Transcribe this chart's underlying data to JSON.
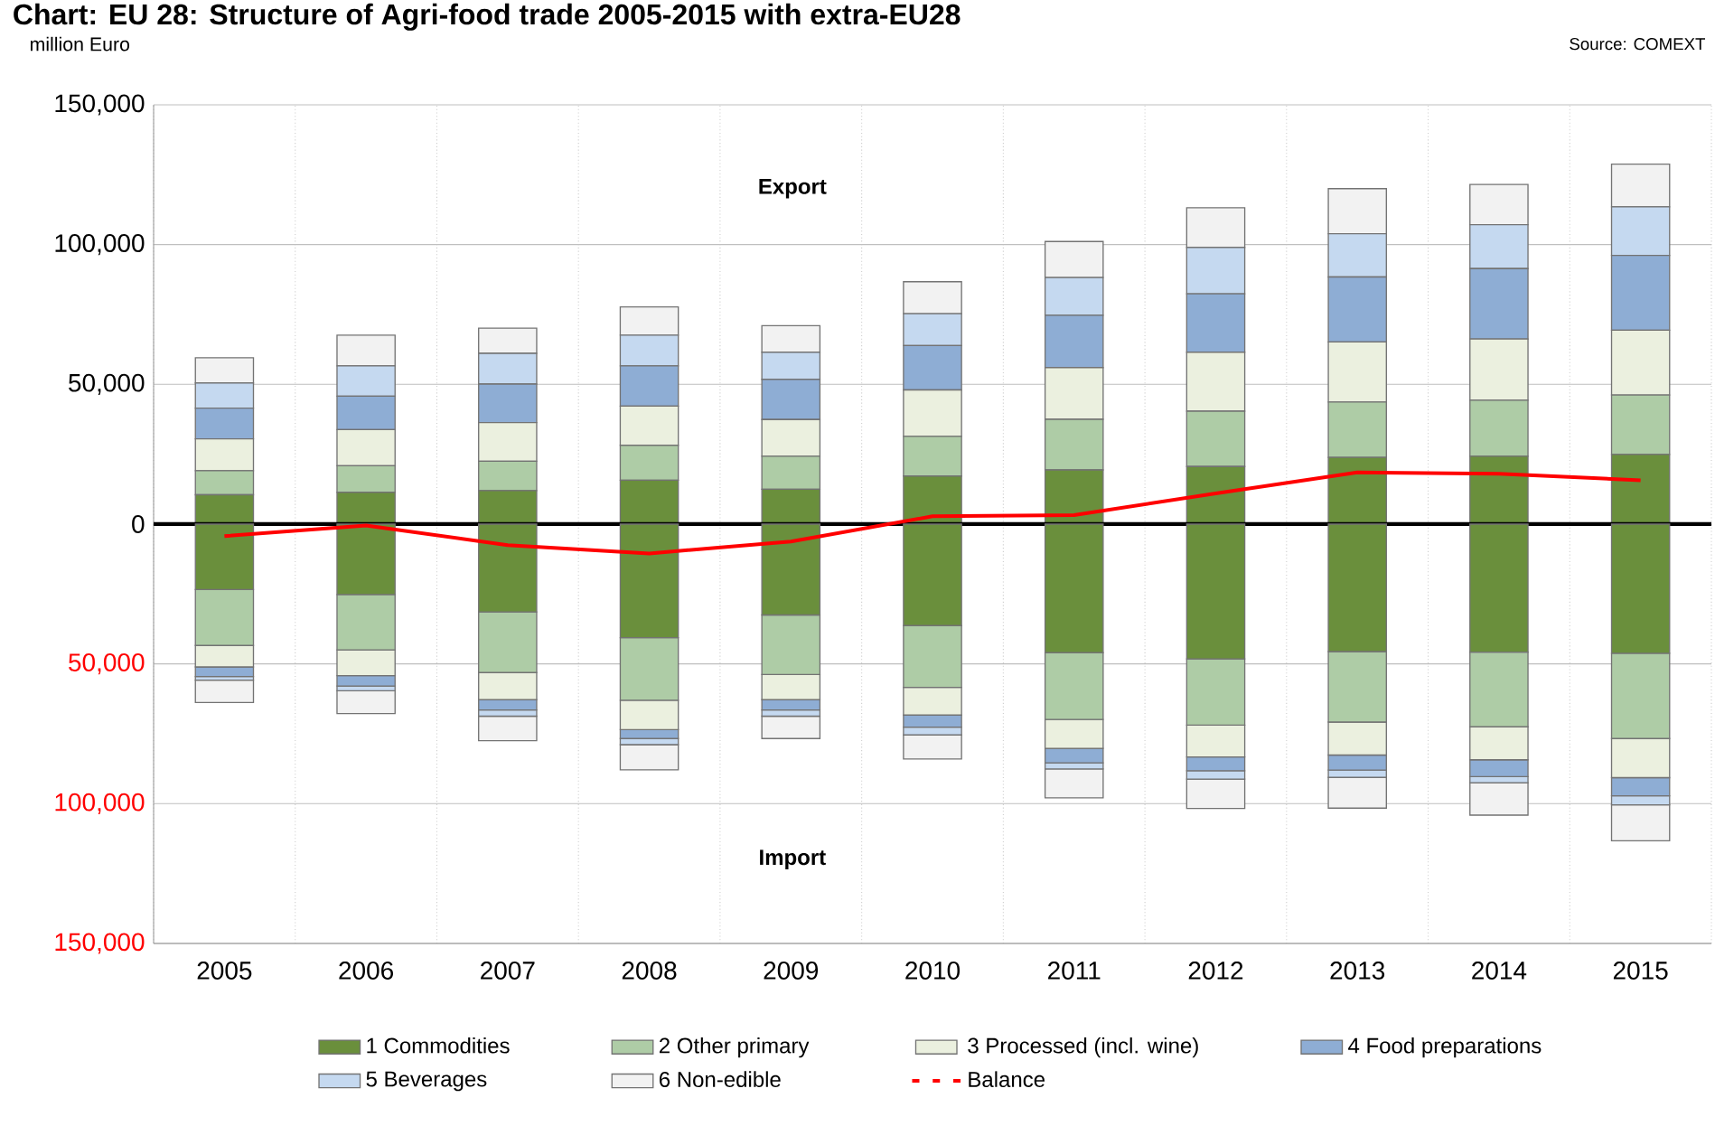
{
  "chart_data": {
    "type": "bar",
    "title": "Chart: EU 28: Structure of Agri-food trade 2005-2015 with extra-EU28",
    "ylabel": "million Euro",
    "annotations": [
      "Source: COMEXT",
      "Export",
      "Import"
    ],
    "categories": [
      "2005",
      "2006",
      "2007",
      "2008",
      "2009",
      "2010",
      "2011",
      "2012",
      "2013",
      "2014",
      "2015"
    ],
    "stacked": true,
    "series": [
      {
        "name": "1 Commodities",
        "color": "#6a8f3c",
        "values": [
          10500,
          11400,
          12000,
          15700,
          12500,
          17200,
          19400,
          20600,
          23900,
          24300,
          24900
        ]
      },
      {
        "name": "2 Other primary",
        "color": "#aecca6",
        "values": [
          8600,
          9500,
          10500,
          12500,
          11800,
          14200,
          18100,
          19800,
          19800,
          20000,
          21300
        ]
      },
      {
        "name": "3 Processed (incl. wine)",
        "color": "#ebf0df",
        "values": [
          11400,
          12900,
          13800,
          14000,
          13100,
          16600,
          18500,
          21100,
          21500,
          21900,
          23200
        ]
      },
      {
        "name": "4 Food preparations",
        "color": "#8eadd4",
        "values": [
          11000,
          12000,
          13800,
          14400,
          14400,
          15900,
          18700,
          20900,
          23200,
          25200,
          26700
        ]
      },
      {
        "name": "5 Beverages",
        "color": "#c5d9f0",
        "values": [
          9000,
          10800,
          11000,
          11000,
          9700,
          11400,
          13500,
          16600,
          15500,
          15700,
          17400
        ]
      },
      {
        "name": "6 Non-edible",
        "color": "#f2f2f2",
        "values": [
          9000,
          11000,
          9000,
          10100,
          9500,
          11400,
          12900,
          14200,
          16100,
          14400,
          15300
        ]
      },
      {
        "color": "#6a8f3c",
        "values": [
          -23400,
          -25200,
          -31400,
          -40600,
          -32500,
          -36300,
          -46000,
          -48200,
          -45600,
          -45800,
          -46200
        ]
      },
      {
        "color": "#aecca6",
        "values": [
          -20000,
          -19800,
          -21700,
          -22400,
          -21300,
          -22100,
          -23900,
          -23700,
          -25200,
          -26700,
          -30500
        ]
      },
      {
        "color": "#ebf0df",
        "values": [
          -7700,
          -9200,
          -9700,
          -10500,
          -9000,
          -9900,
          -10300,
          -11400,
          -11800,
          -11800,
          -14000
        ]
      },
      {
        "color": "#8eadd4",
        "values": [
          -3400,
          -3700,
          -3700,
          -3200,
          -3700,
          -4300,
          -5200,
          -4900,
          -5400,
          -6000,
          -6500
        ]
      },
      {
        "color": "#c5d9f0",
        "values": [
          -1300,
          -1700,
          -2200,
          -2200,
          -2200,
          -2800,
          -2200,
          -3000,
          -2600,
          -2200,
          -3200
        ]
      },
      {
        "color": "#f2f2f2",
        "values": [
          -8000,
          -8200,
          -8800,
          -9000,
          -8000,
          -8600,
          -10300,
          -10500,
          -11000,
          -11600,
          -12900
        ]
      },
      {
        "name": "Balance",
        "type": "line",
        "color": "#ff0000",
        "values": [
          -4300,
          -500,
          -7500,
          -10500,
          -6200,
          2800,
          3200,
          11000,
          18500,
          18000,
          15700
        ]
      }
    ],
    "ylim": [
      -150000,
      150000
    ],
    "yticks": [
      {
        "value": -150000,
        "label": "150,000"
      },
      {
        "value": -100000,
        "label": "100,000"
      },
      {
        "value": -50000,
        "label": "50,000"
      },
      0,
      {
        "value": 50000,
        "label": "50,000"
      },
      {
        "value": 100000,
        "label": "100,000"
      },
      {
        "value": 150000,
        "label": "150,000"
      }
    ],
    "ref_lines": [
      {
        "axis": "y",
        "value": 0,
        "color": "#000000"
      }
    ],
    "grid": true,
    "legend": "bottom"
  }
}
